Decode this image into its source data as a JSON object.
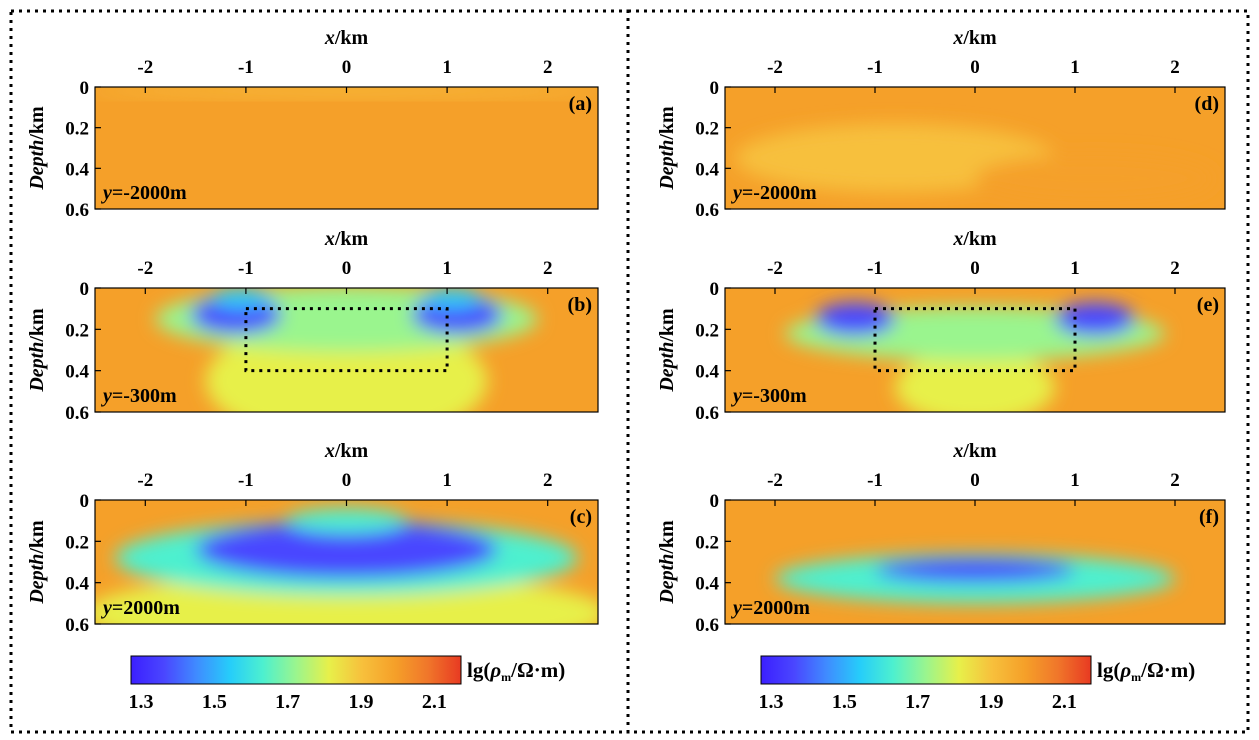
{
  "figure": {
    "colors": {
      "background": "#f5a029",
      "frame": "#000000",
      "colorscale": [
        "#3b1fff",
        "#4a46ff",
        "#3f8cff",
        "#26cdfa",
        "#4df0cf",
        "#9af58e",
        "#e7f04a",
        "#f7c03c",
        "#f5a029",
        "#f0762a",
        "#e83a22"
      ]
    },
    "panels": [
      {
        "id": "a",
        "label": "(a)",
        "slice_label": "y=-2000m",
        "xlabel": "x/km",
        "ylabel": "Depth/km",
        "x_ticks": [
          "-2",
          "-1",
          "0",
          "1",
          "2"
        ],
        "y_ticks": [
          "0",
          "0.2",
          "0.4",
          "0.6"
        ],
        "xlim": [
          -2.5,
          2.5
        ],
        "ylim": [
          0,
          0.6
        ],
        "box": null,
        "anomalies": [
          {
            "x": 0,
            "z": 0.02,
            "rx": 2.6,
            "rz": 0.025,
            "value": 1.97
          }
        ]
      },
      {
        "id": "b",
        "label": "(b)",
        "slice_label": "y=-300m",
        "xlabel": "x/km",
        "ylabel": "Depth/km",
        "x_ticks": [
          "-2",
          "-1",
          "0",
          "1",
          "2"
        ],
        "y_ticks": [
          "0",
          "0.2",
          "0.4",
          "0.6"
        ],
        "xlim": [
          -2.5,
          2.5
        ],
        "ylim": [
          0,
          0.6
        ],
        "box": [
          -1,
          0.1,
          1,
          0.4
        ],
        "anomalies": [
          {
            "x": 0,
            "z": 0.45,
            "rx": 1.4,
            "rz": 0.3,
            "value": 1.82
          },
          {
            "x": 0,
            "z": 0.15,
            "rx": 1.9,
            "rz": 0.16,
            "value": 1.74
          },
          {
            "x": -1.1,
            "z": 0.13,
            "rx": 0.45,
            "rz": 0.09,
            "value": 1.42
          },
          {
            "x": 1.1,
            "z": 0.13,
            "rx": 0.45,
            "rz": 0.09,
            "value": 1.42
          },
          {
            "x": -1.05,
            "z": 0.05,
            "rx": 0.3,
            "rz": 0.05,
            "value": 1.55
          },
          {
            "x": 1.05,
            "z": 0.05,
            "rx": 0.3,
            "rz": 0.05,
            "value": 1.55
          }
        ]
      },
      {
        "id": "c",
        "label": "(c)",
        "slice_label": "y=2000m",
        "xlabel": "x/km",
        "ylabel": "Depth/km",
        "x_ticks": [
          "-2",
          "-1",
          "0",
          "1",
          "2"
        ],
        "y_ticks": [
          "0",
          "0.2",
          "0.4",
          "0.6"
        ],
        "xlim": [
          -2.5,
          2.5
        ],
        "ylim": [
          0,
          0.6
        ],
        "box": null,
        "anomalies": [
          {
            "x": 0,
            "z": 0.55,
            "rx": 2.6,
            "rz": 0.2,
            "value": 1.82
          },
          {
            "x": 0,
            "z": 0.28,
            "rx": 2.3,
            "rz": 0.18,
            "value": 1.65
          },
          {
            "x": 0,
            "z": 0.24,
            "rx": 1.5,
            "rz": 0.14,
            "value": 1.36
          },
          {
            "x": 0,
            "z": 0.1,
            "rx": 0.6,
            "rz": 0.06,
            "value": 1.62
          }
        ]
      },
      {
        "id": "d",
        "label": "(d)",
        "slice_label": "y=-2000m",
        "xlabel": "x/km",
        "ylabel": "Depth/km",
        "x_ticks": [
          "-2",
          "-1",
          "0",
          "1",
          "2"
        ],
        "y_ticks": [
          "0",
          "0.2",
          "0.4",
          "0.6"
        ],
        "xlim": [
          -2.5,
          2.5
        ],
        "ylim": [
          0,
          0.6
        ],
        "box": null,
        "anomalies": [
          {
            "x": -0.8,
            "z": 0.35,
            "rx": 1.6,
            "rz": 0.17,
            "value": 1.97
          },
          {
            "x": 1.2,
            "z": 0.45,
            "rx": 1.2,
            "rz": 0.12,
            "value": 1.98
          }
        ]
      },
      {
        "id": "e",
        "label": "(e)",
        "slice_label": "y=-300m",
        "xlabel": "x/km",
        "ylabel": "Depth/km",
        "x_ticks": [
          "-2",
          "-1",
          "0",
          "1",
          "2"
        ],
        "y_ticks": [
          "0",
          "0.2",
          "0.4",
          "0.6"
        ],
        "xlim": [
          -2.5,
          2.5
        ],
        "ylim": [
          0,
          0.6
        ],
        "box": [
          -1,
          0.1,
          1,
          0.4
        ],
        "anomalies": [
          {
            "x": 0,
            "z": 0.48,
            "rx": 0.8,
            "rz": 0.18,
            "value": 1.85
          },
          {
            "x": 0,
            "z": 0.22,
            "rx": 1.9,
            "rz": 0.13,
            "value": 1.72
          },
          {
            "x": -1.2,
            "z": 0.15,
            "rx": 0.4,
            "rz": 0.08,
            "value": 1.38
          },
          {
            "x": 1.2,
            "z": 0.15,
            "rx": 0.4,
            "rz": 0.08,
            "value": 1.38
          }
        ]
      },
      {
        "id": "f",
        "label": "(f)",
        "slice_label": "y=2000m",
        "xlabel": "x/km",
        "ylabel": "Depth/km",
        "x_ticks": [
          "-2",
          "-1",
          "0",
          "1",
          "2"
        ],
        "y_ticks": [
          "0",
          "0.2",
          "0.4",
          "0.6"
        ],
        "xlim": [
          -2.5,
          2.5
        ],
        "ylim": [
          0,
          0.6
        ],
        "box": null,
        "anomalies": [
          {
            "x": 0,
            "z": 0.38,
            "rx": 2.0,
            "rz": 0.12,
            "value": 1.7
          },
          {
            "x": 0,
            "z": 0.34,
            "rx": 1.0,
            "rz": 0.06,
            "value": 1.42
          }
        ]
      }
    ],
    "colorbars": [
      {
        "id": "left",
        "label": "lg(ρm/Ω·m)",
        "ticks": [
          "1.3",
          "1.5",
          "1.7",
          "1.9",
          "2.1"
        ],
        "range": [
          1.3,
          2.2
        ]
      },
      {
        "id": "right",
        "label": "lg(ρm/Ω·m)",
        "ticks": [
          "1.3",
          "1.5",
          "1.7",
          "1.9",
          "2.1"
        ],
        "range": [
          1.3,
          2.2
        ]
      }
    ]
  },
  "chart_data": [
    {
      "type": "heatmap",
      "panel": "(a)",
      "title": "y=-2000m",
      "xlabel": "x/km",
      "ylabel": "Depth/km",
      "xlim": [
        -2.5,
        2.5
      ],
      "ylim": [
        0,
        0.6
      ],
      "value_range": [
        1.3,
        2.2
      ],
      "background_value": 1.98
    },
    {
      "type": "heatmap",
      "panel": "(b)",
      "title": "y=-300m",
      "xlabel": "x/km",
      "ylabel": "Depth/km",
      "xlim": [
        -2.5,
        2.5
      ],
      "ylim": [
        0,
        0.6
      ],
      "value_range": [
        1.3,
        2.2
      ],
      "box_x": [
        -1,
        1
      ],
      "box_depth": [
        0.1,
        0.4
      ]
    },
    {
      "type": "heatmap",
      "panel": "(c)",
      "title": "y=2000m",
      "xlabel": "x/km",
      "ylabel": "Depth/km",
      "xlim": [
        -2.5,
        2.5
      ],
      "ylim": [
        0,
        0.6
      ],
      "value_range": [
        1.3,
        2.2
      ]
    },
    {
      "type": "heatmap",
      "panel": "(d)",
      "title": "y=-2000m",
      "xlabel": "x/km",
      "ylabel": "Depth/km",
      "xlim": [
        -2.5,
        2.5
      ],
      "ylim": [
        0,
        0.6
      ],
      "value_range": [
        1.3,
        2.2
      ],
      "background_value": 1.98
    },
    {
      "type": "heatmap",
      "panel": "(e)",
      "title": "y=-300m",
      "xlabel": "x/km",
      "ylabel": "Depth/km",
      "xlim": [
        -2.5,
        2.5
      ],
      "ylim": [
        0,
        0.6
      ],
      "value_range": [
        1.3,
        2.2
      ],
      "box_x": [
        -1,
        1
      ],
      "box_depth": [
        0.1,
        0.4
      ]
    },
    {
      "type": "heatmap",
      "panel": "(f)",
      "title": "y=2000m",
      "xlabel": "x/km",
      "ylabel": "Depth/km",
      "xlim": [
        -2.5,
        2.5
      ],
      "ylim": [
        0,
        0.6
      ],
      "value_range": [
        1.3,
        2.2
      ]
    }
  ]
}
